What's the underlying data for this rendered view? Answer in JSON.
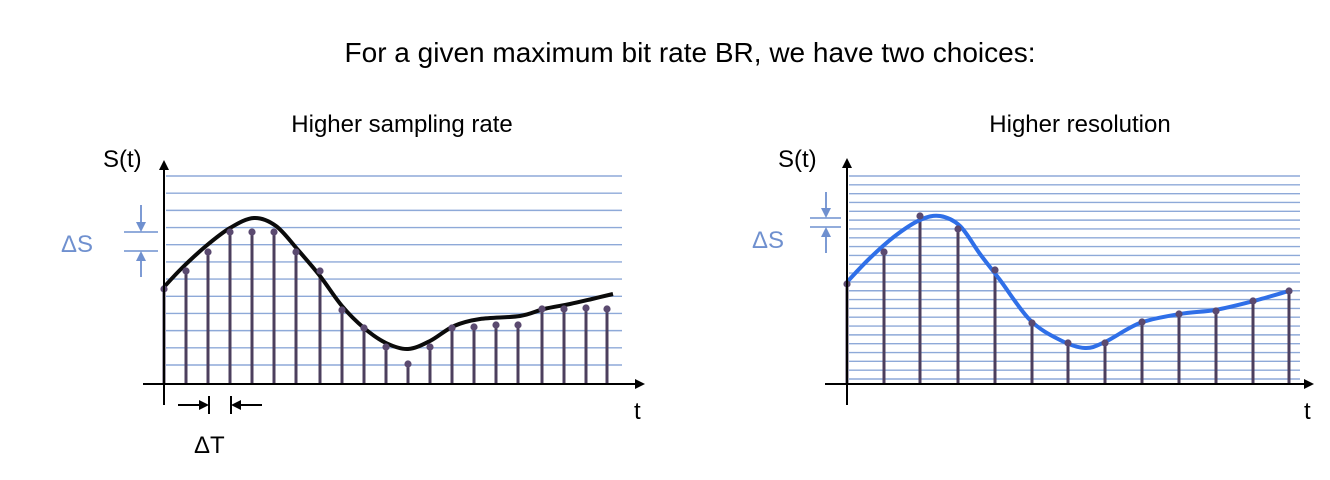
{
  "title": "For a given maximum bit rate BR, we have two choices:",
  "colors": {
    "grid": "#8ea9d8",
    "stem": "#4c3f5e",
    "dot": "#5b4a70",
    "left_curve": "#0b0b0b",
    "right_curve": "#2f6fe8",
    "delta": "#6f90cf"
  },
  "panels": [
    {
      "title": "Higher sampling rate",
      "y_axis_label": "S(t)",
      "x_axis_label": "t",
      "delta_s_label": "ΔS",
      "delta_t_label": "ΔT",
      "grid_lines": 12,
      "samples": 21
    },
    {
      "title": "Higher resolution",
      "y_axis_label": "S(t)",
      "x_axis_label": "t",
      "delta_s_label": "ΔS",
      "grid_lines": 24,
      "samples": 13
    }
  ]
}
